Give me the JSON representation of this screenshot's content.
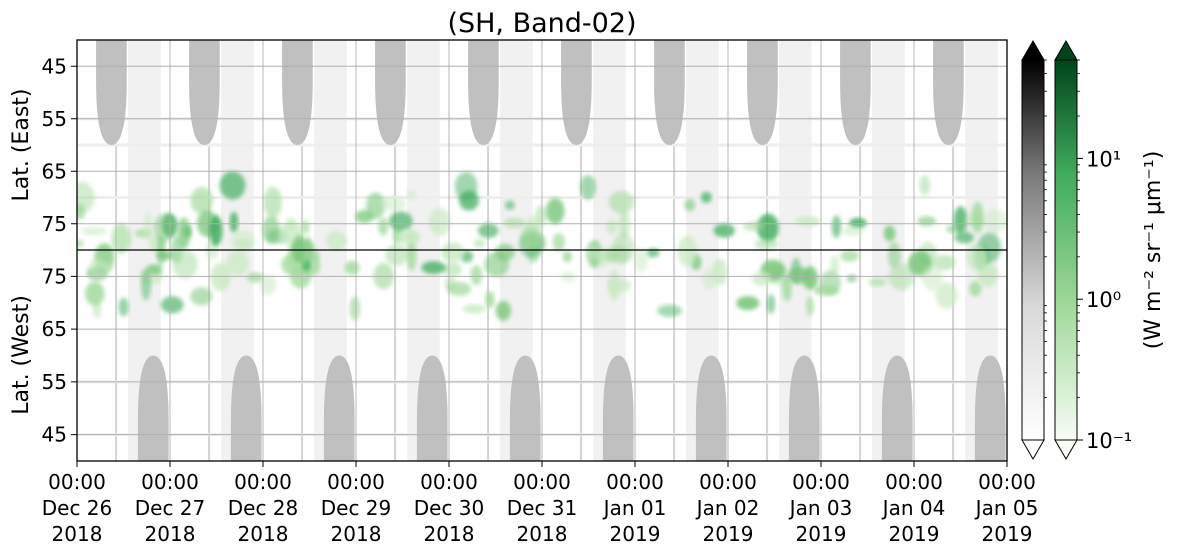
{
  "chart_data": {
    "type": "heatmap",
    "title": "(SH, Band-02)",
    "x_ticks": [
      [
        "00:00",
        "Dec 26",
        "2018"
      ],
      [
        "00:00",
        "Dec 27",
        "2018"
      ],
      [
        "00:00",
        "Dec 28",
        "2018"
      ],
      [
        "00:00",
        "Dec 29",
        "2018"
      ],
      [
        "00:00",
        "Dec 30",
        "2018"
      ],
      [
        "00:00",
        "Dec 31",
        "2018"
      ],
      [
        "00:00",
        "Jan 01",
        "2019"
      ],
      [
        "00:00",
        "Jan 02",
        "2019"
      ],
      [
        "00:00",
        "Jan 03",
        "2019"
      ],
      [
        "00:00",
        "Jan 04",
        "2019"
      ],
      [
        "00:00",
        "Jan 05",
        "2019"
      ]
    ],
    "x_range": [
      "2018-12-26 00:00",
      "2019-01-05 00:00"
    ],
    "y_panels": [
      {
        "label": "Lat. (East)",
        "ticks": [
          45,
          55,
          65,
          75
        ],
        "range": [
          40,
          80
        ]
      },
      {
        "label": "Lat. (West)",
        "ticks": [
          75,
          65,
          55,
          45
        ],
        "range": [
          80,
          40
        ]
      }
    ],
    "grid": true,
    "colorbar": {
      "label": "(W m⁻² sr⁻¹ μm⁻¹)",
      "scale": "log",
      "ticks": [
        "10⁻¹",
        "10⁰",
        "10¹"
      ],
      "range": [
        0.1,
        50
      ],
      "colormaps": [
        "Greys",
        "Greens"
      ],
      "extend": "both"
    }
  }
}
